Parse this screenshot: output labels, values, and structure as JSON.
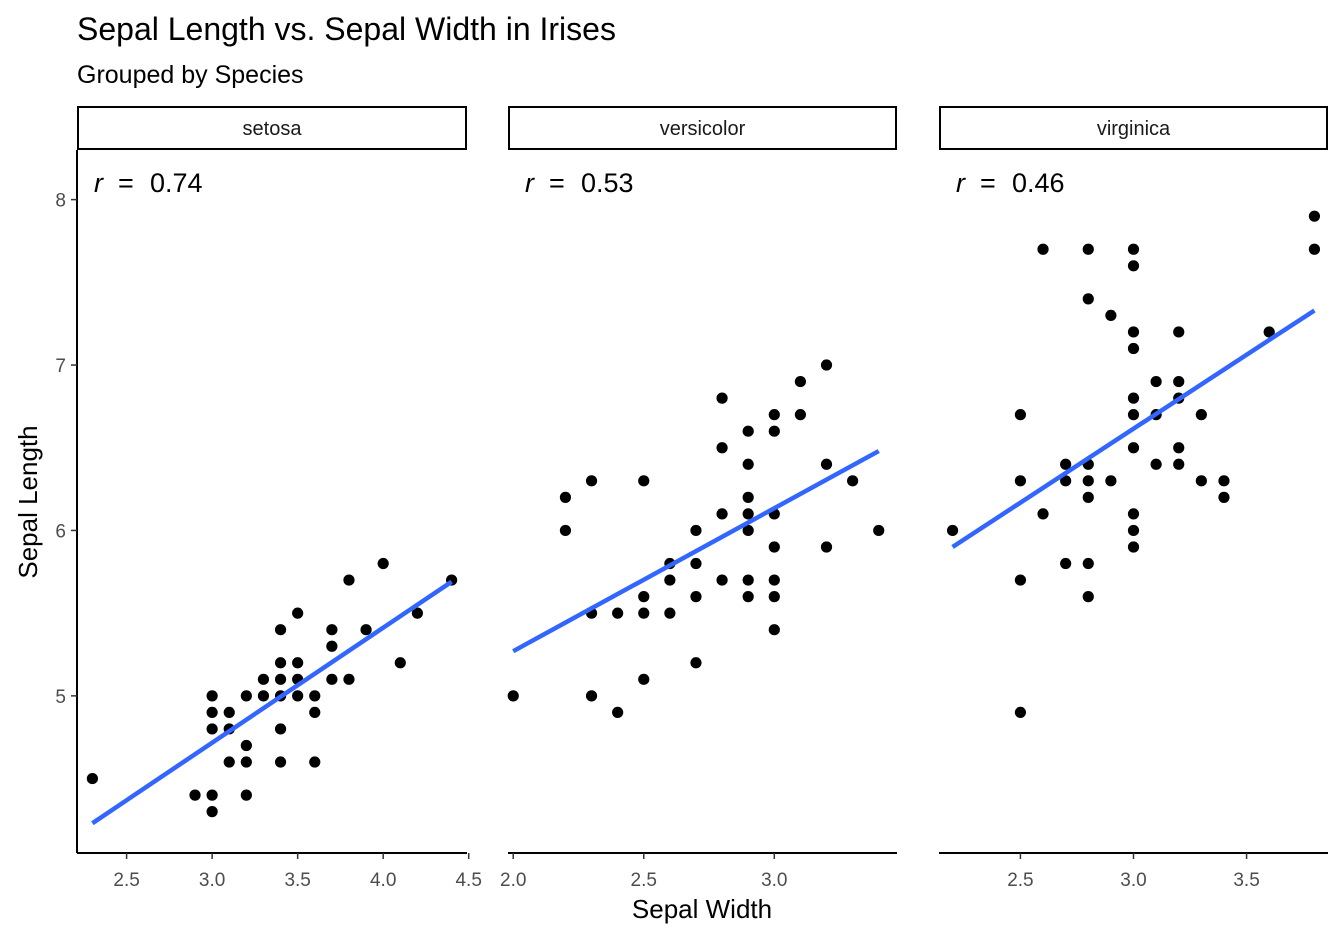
{
  "chart_data": {
    "type": "scatter",
    "title": "Sepal Length vs. Sepal Width in Irises",
    "subtitle": "Grouped by Species",
    "xlabel": "Sepal Width",
    "ylabel": "Sepal Length",
    "ylim": [
      4.05,
      8.3
    ],
    "y_ticks": [
      5,
      6,
      7,
      8
    ],
    "grid": false,
    "point_color": "#000000",
    "line_color": "#3366ff",
    "panels": [
      {
        "name": "setosa",
        "annotation": {
          "symbol": "r",
          "equals": "=",
          "value": "0.74"
        },
        "xlim": [
          2.21,
          4.49
        ],
        "x_ticks": [
          2.5,
          3.0,
          3.5,
          4.0,
          4.5
        ],
        "x_tick_labels": [
          "2.5",
          "3.0",
          "3.5",
          "4.0",
          "4.5"
        ],
        "fit": {
          "x": [
            2.3,
            4.4
          ],
          "y": [
            4.23,
            5.69
          ]
        },
        "points": [
          [
            2.3,
            4.5
          ],
          [
            2.9,
            4.4
          ],
          [
            3.0,
            4.4
          ],
          [
            3.0,
            4.3
          ],
          [
            3.0,
            5.0
          ],
          [
            3.0,
            4.9
          ],
          [
            3.0,
            4.8
          ],
          [
            3.1,
            4.9
          ],
          [
            3.1,
            4.8
          ],
          [
            3.1,
            4.6
          ],
          [
            3.2,
            5.0
          ],
          [
            3.2,
            4.7
          ],
          [
            3.2,
            4.6
          ],
          [
            3.2,
            4.4
          ],
          [
            3.3,
            5.1
          ],
          [
            3.3,
            5.0
          ],
          [
            3.4,
            5.4
          ],
          [
            3.4,
            5.2
          ],
          [
            3.4,
            5.1
          ],
          [
            3.4,
            5.0
          ],
          [
            3.4,
            4.8
          ],
          [
            3.4,
            4.6
          ],
          [
            3.5,
            5.5
          ],
          [
            3.5,
            5.2
          ],
          [
            3.5,
            5.1
          ],
          [
            3.5,
            5.0
          ],
          [
            3.6,
            5.0
          ],
          [
            3.6,
            4.9
          ],
          [
            3.6,
            4.6
          ],
          [
            3.7,
            5.4
          ],
          [
            3.7,
            5.3
          ],
          [
            3.7,
            5.1
          ],
          [
            3.8,
            5.7
          ],
          [
            3.8,
            5.1
          ],
          [
            3.9,
            5.4
          ],
          [
            4.0,
            5.8
          ],
          [
            4.1,
            5.2
          ],
          [
            4.2,
            5.5
          ],
          [
            4.4,
            5.7
          ]
        ]
      },
      {
        "name": "versicolor",
        "annotation": {
          "symbol": "r",
          "equals": "=",
          "value": "0.53"
        },
        "xlim": [
          1.98,
          3.47
        ],
        "x_ticks": [
          2.0,
          2.5,
          3.0
        ],
        "x_tick_labels": [
          "2.0",
          "2.5",
          "3.0"
        ],
        "fit": {
          "x": [
            2.0,
            3.4
          ],
          "y": [
            5.27,
            6.48
          ]
        },
        "points": [
          [
            2.0,
            5.0
          ],
          [
            2.2,
            6.2
          ],
          [
            2.2,
            6.0
          ],
          [
            2.3,
            6.3
          ],
          [
            2.3,
            5.5
          ],
          [
            2.3,
            5.0
          ],
          [
            2.4,
            5.5
          ],
          [
            2.4,
            4.9
          ],
          [
            2.5,
            6.3
          ],
          [
            2.5,
            5.6
          ],
          [
            2.5,
            5.5
          ],
          [
            2.5,
            5.1
          ],
          [
            2.6,
            5.8
          ],
          [
            2.6,
            5.7
          ],
          [
            2.6,
            5.5
          ],
          [
            2.7,
            6.0
          ],
          [
            2.7,
            5.8
          ],
          [
            2.7,
            5.6
          ],
          [
            2.7,
            5.2
          ],
          [
            2.8,
            6.8
          ],
          [
            2.8,
            6.5
          ],
          [
            2.8,
            6.1
          ],
          [
            2.8,
            5.7
          ],
          [
            2.9,
            6.6
          ],
          [
            2.9,
            6.4
          ],
          [
            2.9,
            6.2
          ],
          [
            2.9,
            6.1
          ],
          [
            2.9,
            6.0
          ],
          [
            2.9,
            5.7
          ],
          [
            2.9,
            5.6
          ],
          [
            3.0,
            6.7
          ],
          [
            3.0,
            6.6
          ],
          [
            3.0,
            6.1
          ],
          [
            3.0,
            5.9
          ],
          [
            3.0,
            5.7
          ],
          [
            3.0,
            5.6
          ],
          [
            3.0,
            5.4
          ],
          [
            3.1,
            6.9
          ],
          [
            3.1,
            6.7
          ],
          [
            3.2,
            7.0
          ],
          [
            3.2,
            6.4
          ],
          [
            3.2,
            5.9
          ],
          [
            3.3,
            6.3
          ],
          [
            3.4,
            6.0
          ]
        ]
      },
      {
        "name": "virginica",
        "annotation": {
          "symbol": "r",
          "equals": "=",
          "value": "0.46"
        },
        "xlim": [
          2.14,
          3.86
        ],
        "x_ticks": [
          2.5,
          3.0,
          3.5
        ],
        "x_tick_labels": [
          "2.5",
          "3.0",
          "3.5"
        ],
        "fit": {
          "x": [
            2.2,
            3.8
          ],
          "y": [
            5.9,
            7.33
          ]
        },
        "points": [
          [
            2.2,
            6.0
          ],
          [
            2.5,
            6.7
          ],
          [
            2.5,
            6.3
          ],
          [
            2.5,
            5.7
          ],
          [
            2.5,
            4.9
          ],
          [
            2.6,
            7.7
          ],
          [
            2.6,
            6.1
          ],
          [
            2.7,
            6.4
          ],
          [
            2.7,
            6.3
          ],
          [
            2.7,
            5.8
          ],
          [
            2.8,
            7.7
          ],
          [
            2.8,
            7.4
          ],
          [
            2.8,
            6.4
          ],
          [
            2.8,
            6.3
          ],
          [
            2.8,
            6.2
          ],
          [
            2.8,
            5.8
          ],
          [
            2.8,
            5.6
          ],
          [
            2.9,
            7.3
          ],
          [
            2.9,
            6.3
          ],
          [
            3.0,
            7.7
          ],
          [
            3.0,
            7.6
          ],
          [
            3.0,
            7.2
          ],
          [
            3.0,
            7.1
          ],
          [
            3.0,
            6.8
          ],
          [
            3.0,
            6.7
          ],
          [
            3.0,
            6.5
          ],
          [
            3.0,
            6.1
          ],
          [
            3.0,
            6.0
          ],
          [
            3.0,
            5.9
          ],
          [
            3.1,
            6.9
          ],
          [
            3.1,
            6.7
          ],
          [
            3.1,
            6.4
          ],
          [
            3.2,
            7.2
          ],
          [
            3.2,
            6.9
          ],
          [
            3.2,
            6.8
          ],
          [
            3.2,
            6.5
          ],
          [
            3.2,
            6.4
          ],
          [
            3.3,
            6.7
          ],
          [
            3.3,
            6.3
          ],
          [
            3.4,
            6.3
          ],
          [
            3.4,
            6.2
          ],
          [
            3.6,
            7.2
          ],
          [
            3.8,
            7.9
          ],
          [
            3.8,
            7.7
          ]
        ]
      }
    ]
  }
}
